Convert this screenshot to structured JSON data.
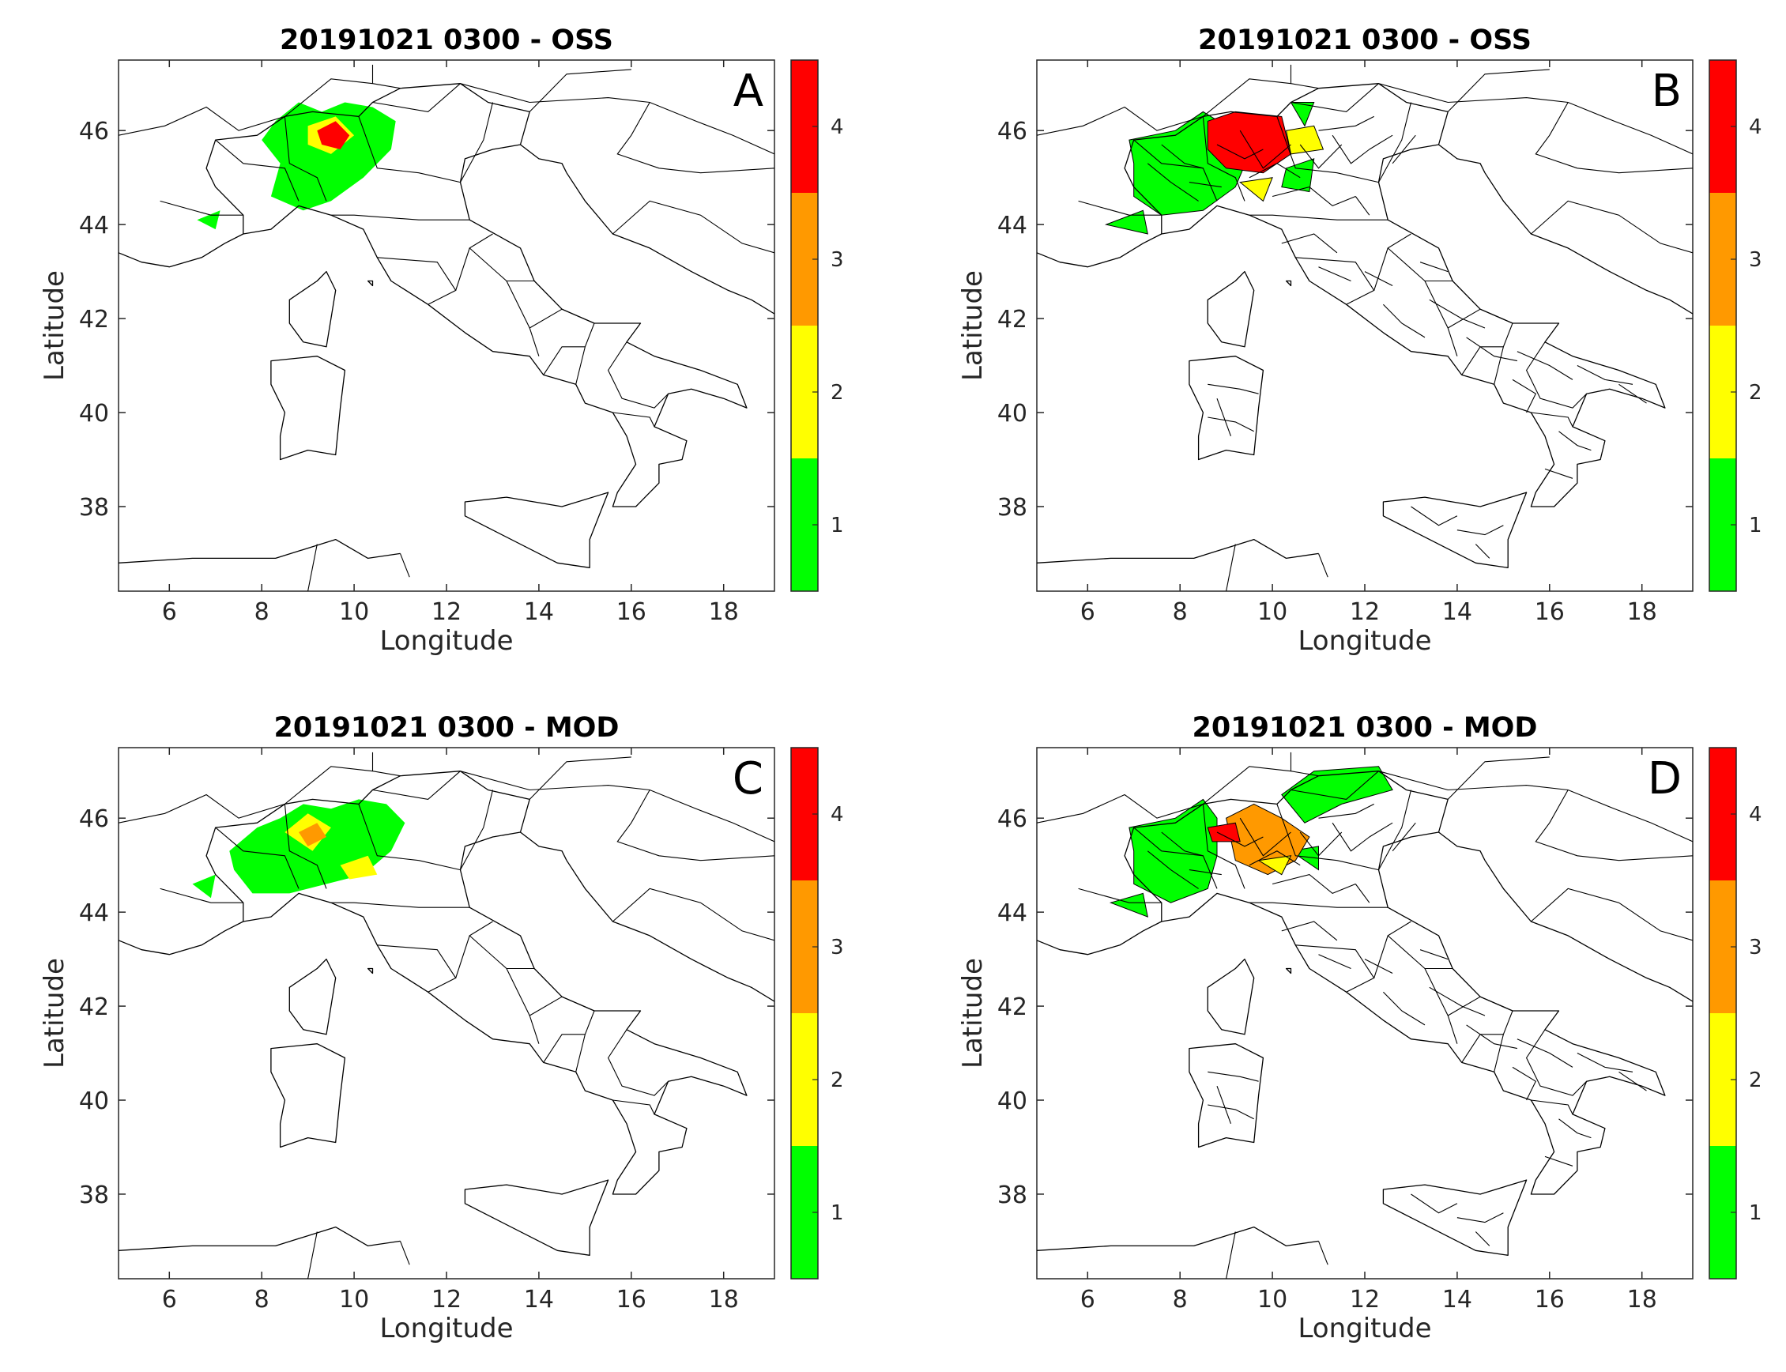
{
  "figure": {
    "panels": [
      {
        "id": "A",
        "title": "20191021 0300 - OSS",
        "letter": "A",
        "kind": "grid"
      },
      {
        "id": "B",
        "title": "20191021 0300 - OSS",
        "letter": "B",
        "kind": "province"
      },
      {
        "id": "C",
        "title": "20191021 0300 - MOD",
        "letter": "C",
        "kind": "grid"
      },
      {
        "id": "D",
        "title": "20191021 0300 - MOD",
        "letter": "D",
        "kind": "province"
      }
    ]
  },
  "chart_data": {
    "type": "heatmap",
    "xlabel": "Longitude",
    "ylabel": "Latitude",
    "xlim": [
      4.9,
      19.1
    ],
    "ylim": [
      36.2,
      47.5
    ],
    "xticks": [
      6,
      8,
      10,
      12,
      14,
      16,
      18
    ],
    "yticks": [
      38,
      40,
      42,
      44,
      46
    ],
    "colorbar": {
      "levels": [
        1,
        2,
        3,
        4
      ],
      "colors": [
        "#00ff00",
        "#ffff00",
        "#ff9900",
        "#ff0000"
      ],
      "range": [
        0.5,
        4.5
      ]
    }
  }
}
